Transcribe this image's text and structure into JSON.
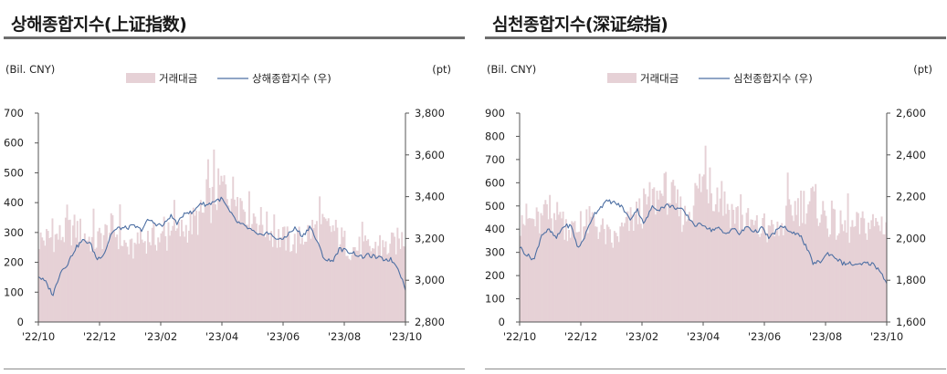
{
  "colors": {
    "volume": "#e6d1d6",
    "index": "#4d6fa3",
    "axis": "#555555",
    "title_rule": "#6e6e6e"
  },
  "chart_data": [
    {
      "type": "bar+line",
      "title": "상해종합지수(上证指数)",
      "y_left_unit": "(Bil. CNY)",
      "y_right_unit": "(pt)",
      "legend": [
        "거래대금",
        "상해종합지수 (우)"
      ],
      "legend_placement": "top-center",
      "x_ticks": [
        "'22/10",
        "'22/12",
        "'23/02",
        "'23/04",
        "'23/06",
        "'23/08",
        "'23/10"
      ],
      "y_left": {
        "min": 0,
        "max": 700,
        "ticks": [
          "0",
          "100",
          "200",
          "300",
          "400",
          "500",
          "600",
          "700"
        ]
      },
      "y_right": {
        "min": 2800,
        "max": 3800,
        "ticks": [
          "2,800",
          "3,000",
          "3,200",
          "3,400",
          "3,600",
          "3,800"
        ]
      },
      "series": [
        {
          "name": "거래대금",
          "axis": "left",
          "kind": "bar",
          "t": [
            0,
            0.05,
            0.1,
            0.15,
            0.2,
            0.25,
            0.3,
            0.35,
            0.4,
            0.45,
            0.5,
            0.55,
            0.6,
            0.65,
            0.7,
            0.75,
            0.8,
            0.85,
            0.9,
            0.95,
            1
          ],
          "values": [
            290,
            300,
            330,
            280,
            330,
            250,
            300,
            290,
            330,
            380,
            480,
            430,
            360,
            300,
            280,
            330,
            330,
            260,
            260,
            260,
            300
          ]
        },
        {
          "name": "상해종합지수 (우)",
          "axis": "right",
          "kind": "line",
          "t": [
            0,
            0.02,
            0.04,
            0.06,
            0.08,
            0.1,
            0.12,
            0.14,
            0.16,
            0.18,
            0.2,
            0.22,
            0.24,
            0.26,
            0.28,
            0.3,
            0.32,
            0.34,
            0.36,
            0.38,
            0.4,
            0.42,
            0.44,
            0.46,
            0.48,
            0.5,
            0.52,
            0.54,
            0.56,
            0.58,
            0.6,
            0.62,
            0.64,
            0.66,
            0.68,
            0.7,
            0.72,
            0.74,
            0.76,
            0.78,
            0.8,
            0.82,
            0.84,
            0.86,
            0.88,
            0.9,
            0.92,
            0.94,
            0.96,
            0.98,
            1
          ],
          "values": [
            3020,
            2990,
            2930,
            3040,
            3080,
            3150,
            3190,
            3180,
            3100,
            3130,
            3230,
            3250,
            3250,
            3260,
            3240,
            3290,
            3270,
            3260,
            3310,
            3270,
            3330,
            3320,
            3370,
            3360,
            3380,
            3390,
            3330,
            3280,
            3260,
            3240,
            3210,
            3230,
            3210,
            3190,
            3220,
            3250,
            3210,
            3260,
            3180,
            3100,
            3090,
            3150,
            3140,
            3130,
            3110,
            3120,
            3110,
            3100,
            3100,
            3060,
            2960
          ]
        }
      ]
    },
    {
      "type": "bar+line",
      "title": "심천종합지수(深证综指)",
      "y_left_unit": "(Bil. CNY)",
      "y_right_unit": "(pt)",
      "legend": [
        "거래대금",
        "심천종합지수 (우)"
      ],
      "legend_placement": "top-center",
      "x_ticks": [
        "'22/10",
        "'22/12",
        "'23/02",
        "'23/04",
        "'23/06",
        "'23/08",
        "'23/10"
      ],
      "y_left": {
        "min": 0,
        "max": 900,
        "ticks": [
          "0",
          "100",
          "200",
          "300",
          "400",
          "500",
          "600",
          "700",
          "800",
          "900"
        ]
      },
      "y_right": {
        "min": 1600,
        "max": 2600,
        "ticks": [
          "1,600",
          "1,800",
          "2,000",
          "2,200",
          "2,400",
          "2,600"
        ]
      },
      "series": [
        {
          "name": "거래대금",
          "axis": "left",
          "kind": "bar",
          "t": [
            0,
            0.05,
            0.1,
            0.15,
            0.2,
            0.25,
            0.3,
            0.35,
            0.4,
            0.45,
            0.5,
            0.55,
            0.6,
            0.65,
            0.7,
            0.75,
            0.8,
            0.85,
            0.9,
            0.95,
            1
          ],
          "values": [
            470,
            450,
            480,
            410,
            460,
            360,
            450,
            540,
            590,
            470,
            650,
            550,
            470,
            420,
            400,
            520,
            550,
            440,
            420,
            440,
            450
          ]
        },
        {
          "name": "심천종합지수 (우)",
          "axis": "right",
          "kind": "line",
          "t": [
            0,
            0.02,
            0.04,
            0.06,
            0.08,
            0.1,
            0.12,
            0.14,
            0.16,
            0.18,
            0.2,
            0.22,
            0.24,
            0.26,
            0.28,
            0.3,
            0.32,
            0.34,
            0.36,
            0.38,
            0.4,
            0.42,
            0.44,
            0.46,
            0.48,
            0.5,
            0.52,
            0.54,
            0.56,
            0.58,
            0.6,
            0.62,
            0.64,
            0.66,
            0.68,
            0.7,
            0.72,
            0.74,
            0.76,
            0.78,
            0.8,
            0.82,
            0.84,
            0.86,
            0.88,
            0.9,
            0.92,
            0.94,
            0.96,
            0.98,
            1
          ],
          "values": [
            1960,
            1920,
            1900,
            2020,
            2040,
            2000,
            2060,
            2060,
            1950,
            2020,
            2110,
            2150,
            2180,
            2170,
            2150,
            2090,
            2140,
            2070,
            2150,
            2140,
            2160,
            2150,
            2140,
            2100,
            2060,
            2070,
            2040,
            2050,
            2020,
            2050,
            2020,
            2060,
            2030,
            2050,
            2000,
            2040,
            2060,
            2020,
            2030,
            1960,
            1880,
            1890,
            1930,
            1910,
            1880,
            1880,
            1870,
            1880,
            1880,
            1850,
            1790
          ]
        }
      ]
    }
  ]
}
